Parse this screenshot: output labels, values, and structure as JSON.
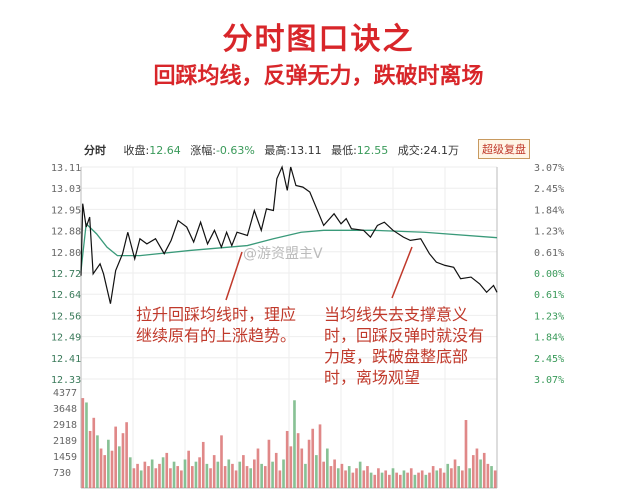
{
  "header": {
    "title": "分时图口诀之",
    "subtitle": "回踩均线，反弹无力，跌破时离场"
  },
  "infobar": {
    "mode": "分时",
    "close_label": "收盘:",
    "close": "12.64",
    "change_label": "涨幅:",
    "change": "-0.63%",
    "high_label": "最高:",
    "high": "13.11",
    "low_label": "最低:",
    "low": "12.55",
    "volume_label": "成交:",
    "volume": "24.1万",
    "button": "超级复盘"
  },
  "watermark": "@游资盟主V",
  "annotations": {
    "left": "拉升回踩均线时，理应继续原有的上涨趋势。",
    "right": "当均线失去支撑意义时，回踩反弹时就没有力度，跌破盘整底部时，离场观望"
  },
  "chart_data": {
    "type": "line",
    "ylim": [
      12.33,
      13.11
    ],
    "y_ticks": [
      "13.11",
      "13.03",
      "12.95",
      "12.88",
      "12.80",
      "12.72",
      "12.64",
      "12.56",
      "12.49",
      "12.41",
      "12.33"
    ],
    "y2_ticks": [
      "3.07%",
      "2.45%",
      "1.84%",
      "1.23%",
      "0.61%",
      "0.00%",
      "0.61%",
      "1.23%",
      "1.84%",
      "2.45%",
      "3.07%"
    ],
    "xlim": [
      0,
      240
    ],
    "price": [
      [
        0,
        12.71
      ],
      [
        1,
        12.975
      ],
      [
        3,
        12.889
      ],
      [
        5,
        12.926
      ],
      [
        7,
        12.717
      ],
      [
        11,
        12.754
      ],
      [
        13,
        12.717
      ],
      [
        17,
        12.607
      ],
      [
        20,
        12.729
      ],
      [
        24,
        12.791
      ],
      [
        27,
        12.87
      ],
      [
        31,
        12.772
      ],
      [
        34,
        12.846
      ],
      [
        38,
        12.827
      ],
      [
        43,
        12.846
      ],
      [
        48,
        12.791
      ],
      [
        52,
        12.84
      ],
      [
        56,
        12.913
      ],
      [
        61,
        12.889
      ],
      [
        65,
        12.834
      ],
      [
        69,
        12.907
      ],
      [
        73,
        12.827
      ],
      [
        77,
        12.877
      ],
      [
        81,
        12.815
      ],
      [
        84,
        12.87
      ],
      [
        87,
        12.821
      ],
      [
        90,
        12.87
      ],
      [
        96,
        12.858
      ],
      [
        100,
        12.95
      ],
      [
        104,
        12.877
      ],
      [
        107,
        12.956
      ],
      [
        111,
        12.95
      ],
      [
        113,
        13.067
      ],
      [
        116,
        13.11
      ],
      [
        119,
        13.024
      ],
      [
        121,
        13.11
      ],
      [
        124,
        13.042
      ],
      [
        128,
        13.036
      ],
      [
        132,
        13.018
      ],
      [
        140,
        12.895
      ],
      [
        146,
        12.938
      ],
      [
        150,
        12.901
      ],
      [
        153,
        12.92
      ],
      [
        156,
        12.883
      ],
      [
        163,
        12.877
      ],
      [
        167,
        12.852
      ],
      [
        171,
        12.895
      ],
      [
        175,
        12.907
      ],
      [
        180,
        12.877
      ],
      [
        186,
        12.852
      ],
      [
        190,
        12.84
      ],
      [
        196,
        12.846
      ],
      [
        201,
        12.791
      ],
      [
        205,
        12.76
      ],
      [
        210,
        12.748
      ],
      [
        215,
        12.741
      ],
      [
        219,
        12.699
      ],
      [
        225,
        12.705
      ],
      [
        230,
        12.68
      ],
      [
        234,
        12.649
      ],
      [
        238,
        12.674
      ],
      [
        240,
        12.649
      ]
    ],
    "average": [
      [
        0,
        12.729
      ],
      [
        3,
        12.901
      ],
      [
        9,
        12.864
      ],
      [
        15,
        12.815
      ],
      [
        21,
        12.784
      ],
      [
        34,
        12.784
      ],
      [
        63,
        12.803
      ],
      [
        96,
        12.821
      ],
      [
        111,
        12.846
      ],
      [
        127,
        12.87
      ],
      [
        140,
        12.877
      ],
      [
        169,
        12.877
      ],
      [
        198,
        12.87
      ],
      [
        240,
        12.85
      ]
    ],
    "volume_ylim": [
      0,
      4377
    ],
    "volume_ticks": [
      "4377",
      "3648",
      "2918",
      "2189",
      "1459",
      "730"
    ],
    "volume": [
      4100,
      3900,
      2600,
      3200,
      2400,
      1800,
      1500,
      2200,
      1700,
      2800,
      1900,
      2500,
      3000,
      1400,
      900,
      1100,
      800,
      1200,
      1000,
      1300,
      900,
      1100,
      1400,
      1600,
      900,
      1200,
      1000,
      800,
      1300,
      1700,
      1000,
      1200,
      1400,
      2100,
      1100,
      900,
      1500,
      1200,
      2400,
      1000,
      1300,
      1100,
      800,
      1200,
      1500,
      1000,
      900,
      1300,
      1800,
      1100,
      1000,
      2200,
      1200,
      1600,
      800,
      1300,
      2600,
      1900,
      4000,
      2500,
      1800,
      1100,
      2200,
      2700,
      1500,
      2900,
      1200,
      1800,
      1000,
      1300,
      900,
      1100,
      800,
      1000,
      700,
      900,
      1200,
      800,
      1000,
      700,
      600,
      900,
      700,
      800,
      600,
      900,
      700,
      600,
      800,
      700,
      900,
      600,
      700,
      800,
      600,
      700,
      1000,
      800,
      900,
      700,
      1100,
      900,
      1300,
      1000,
      800,
      3100,
      900,
      1500,
      1800,
      1300,
      1600,
      1100,
      1000,
      800
    ]
  },
  "colors": {
    "price": "#111111",
    "average": "#3a9a7a",
    "up": "#d86a6a",
    "down": "#6ab27a",
    "text_red": "#d8262a",
    "axis_green": "#3a9a5a"
  }
}
